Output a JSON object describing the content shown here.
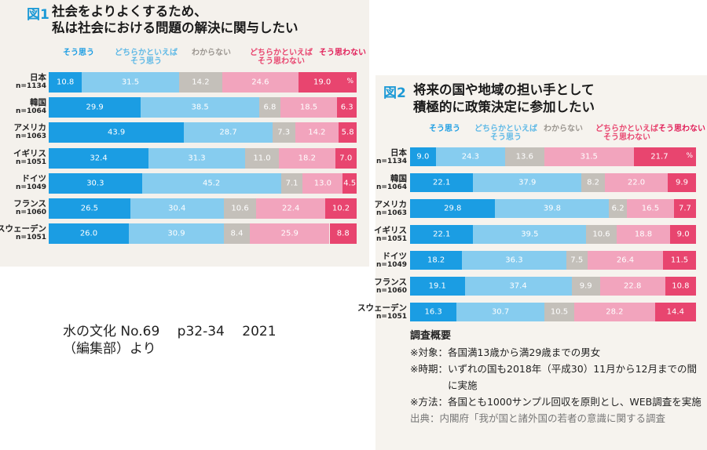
{
  "colors": {
    "strong_agree": "#1b9de3",
    "agree": "#86ccef",
    "unknown": "#c4c0ba",
    "disagree": "#f2a4bd",
    "strong_disagree": "#e8456f"
  },
  "legend_labels": [
    "そう思う",
    "どちらかといえば\nそう思う",
    "わからない",
    "どちらかといえば\nそう思わない",
    "そう思わない"
  ],
  "fig1": {
    "num": "図1",
    "title_line1": "社会をよりよくするため、",
    "title_line2": "私は社会における問題の解決に関与したい",
    "pct_mark": "%"
  },
  "fig2": {
    "num": "図2",
    "title_line1": "将来の国や地域の担い手として",
    "title_line2": "積極的に政策決定に参加したい",
    "pct_mark": "%"
  },
  "chart_data": [
    {
      "type": "bar",
      "title": "社会をよりよくするため、私は社会における問題の解決に関与したい",
      "categories": [
        "日本",
        "韓国",
        "アメリカ",
        "イギリス",
        "ドイツ",
        "フランス",
        "スウェーデン"
      ],
      "sample_sizes": [
        "n=1134",
        "n=1064",
        "n=1063",
        "n=1051",
        "n=1049",
        "n=1060",
        "n=1051"
      ],
      "series": [
        {
          "name": "そう思う",
          "values": [
            10.8,
            29.9,
            43.9,
            32.4,
            30.3,
            26.5,
            26.0
          ]
        },
        {
          "name": "どちらかといえばそう思う",
          "values": [
            31.5,
            38.5,
            28.7,
            31.3,
            45.2,
            30.4,
            30.9
          ]
        },
        {
          "name": "わからない",
          "values": [
            14.2,
            6.8,
            7.3,
            11.0,
            7.1,
            10.6,
            8.4
          ]
        },
        {
          "name": "どちらかといえばそう思わない",
          "values": [
            24.6,
            18.5,
            14.2,
            18.2,
            13.0,
            22.4,
            25.9
          ]
        },
        {
          "name": "そう思わない",
          "values": [
            19.0,
            6.3,
            5.8,
            7.0,
            4.5,
            10.2,
            8.8
          ]
        }
      ]
    },
    {
      "type": "bar",
      "title": "将来の国や地域の担い手として積極的に政策決定に参加したい",
      "categories": [
        "日本",
        "韓国",
        "アメリカ",
        "イギリス",
        "ドイツ",
        "フランス",
        "スウェーデン"
      ],
      "sample_sizes": [
        "n=1134",
        "n=1064",
        "n=1063",
        "n=1051",
        "n=1049",
        "n=1060",
        "n=1051"
      ],
      "series": [
        {
          "name": "そう思う",
          "values": [
            9.0,
            22.1,
            29.8,
            22.1,
            18.2,
            19.1,
            16.3
          ]
        },
        {
          "name": "どちらかといえばそう思う",
          "values": [
            24.3,
            37.9,
            39.8,
            39.5,
            36.3,
            37.4,
            30.7
          ]
        },
        {
          "name": "わからない",
          "values": [
            13.6,
            8.2,
            6.2,
            10.6,
            7.5,
            9.9,
            10.5
          ]
        },
        {
          "name": "どちらかといえばそう思わない",
          "values": [
            31.5,
            22.0,
            16.5,
            18.8,
            26.4,
            22.8,
            28.2
          ]
        },
        {
          "name": "そう思わない",
          "values": [
            21.7,
            9.9,
            7.7,
            9.0,
            11.5,
            10.8,
            14.4
          ]
        }
      ]
    }
  ],
  "caption": {
    "line1": "水の文化 No.69　 p32-34　 2021",
    "line2": "（編集部）より"
  },
  "survey": {
    "heading": "調査概要",
    "items": [
      {
        "k": "※対象：",
        "v": "各国満13歳から満29歳までの男女"
      },
      {
        "k": "※時期：",
        "v": "いずれの国も2018年（平成30）11月から12月までの間に実施"
      },
      {
        "k": "※方法：",
        "v": "各国とも1000サンプル回収を原則とし、WEB調査を実施"
      }
    ],
    "source": "出典：内閣府「我が国と諸外国の若者の意識に関する調査"
  }
}
